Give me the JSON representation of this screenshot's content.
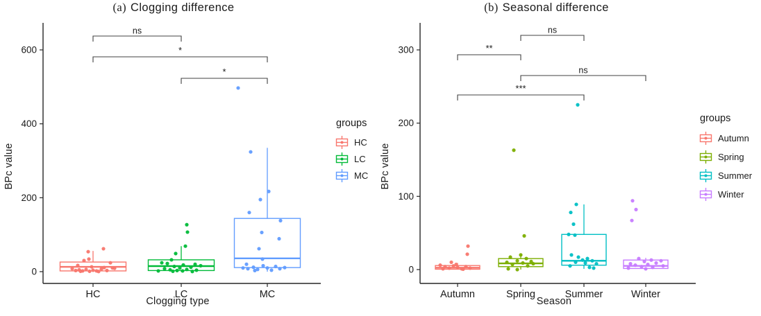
{
  "chart_data": [
    {
      "type": "boxplot",
      "title_tag": "(a)",
      "title_text": "Clogging difference",
      "xlabel": "Clogging type",
      "ylabel": "BPc value",
      "categories": [
        "HC",
        "LC",
        "MC"
      ],
      "y_ticks": [
        0,
        200,
        400,
        600
      ],
      "ylim": [
        0,
        675
      ],
      "grid": false,
      "legend": {
        "title": "groups",
        "position": "right",
        "entries": [
          {
            "label": "HC",
            "color": "#F8766D"
          },
          {
            "label": "LC",
            "color": "#00BA38"
          },
          {
            "label": "MC",
            "color": "#619CFF"
          }
        ]
      },
      "series": [
        {
          "group": "HC",
          "whisker_low": 0,
          "q1": 2,
          "median": 13,
          "q3": 26,
          "whisker_high": 56,
          "points": [
            {
              "dx": 15,
              "v": 62
            },
            {
              "dx": -7,
              "v": 54
            },
            {
              "dx": -6,
              "v": 34
            },
            {
              "dx": -13,
              "v": 30
            },
            {
              "dx": 25,
              "v": 24
            },
            {
              "dx": -22,
              "v": 17
            },
            {
              "dx": -2,
              "v": 13
            },
            {
              "dx": 16,
              "v": 11
            },
            {
              "dx": 31,
              "v": 9
            },
            {
              "dx": -30,
              "v": 8
            },
            {
              "dx": -25,
              "v": 3
            },
            {
              "dx": -20,
              "v": 5
            },
            {
              "dx": -15,
              "v": 2
            },
            {
              "dx": -10,
              "v": 6
            },
            {
              "dx": -5,
              "v": 1
            },
            {
              "dx": 0,
              "v": 4
            },
            {
              "dx": 5,
              "v": 2
            },
            {
              "dx": 12,
              "v": 7
            },
            {
              "dx": 20,
              "v": 3
            },
            {
              "dx": 28,
              "v": 10
            },
            {
              "dx": -18,
              "v": 1
            },
            {
              "dx": 8,
              "v": 0.5
            }
          ]
        },
        {
          "group": "LC",
          "whisker_low": 0,
          "q1": 3,
          "median": 15,
          "q3": 32,
          "whisker_high": 69,
          "points": [
            {
              "dx": 8,
              "v": 127
            },
            {
              "dx": 9,
              "v": 107
            },
            {
              "dx": 6,
              "v": 69
            },
            {
              "dx": -8,
              "v": 49
            },
            {
              "dx": -14,
              "v": 32
            },
            {
              "dx": -28,
              "v": 24
            },
            {
              "dx": -20,
              "v": 22
            },
            {
              "dx": 20,
              "v": 20
            },
            {
              "dx": 3,
              "v": 18
            },
            {
              "dx": 28,
              "v": 16
            },
            {
              "dx": -10,
              "v": 14
            },
            {
              "dx": 14,
              "v": 12
            },
            {
              "dx": -2,
              "v": 10
            },
            {
              "dx": -24,
              "v": 8
            },
            {
              "dx": 8,
              "v": 6
            },
            {
              "dx": -16,
              "v": 5
            },
            {
              "dx": 22,
              "v": 4
            },
            {
              "dx": -6,
              "v": 3
            },
            {
              "dx": 2,
              "v": 2
            },
            {
              "dx": -12,
              "v": 1
            },
            {
              "dx": 16,
              "v": 0.5
            },
            {
              "dx": -33,
              "v": 2
            }
          ]
        },
        {
          "group": "MC",
          "whisker_low": 0,
          "q1": 11,
          "median": 36,
          "q3": 144,
          "whisker_high": 335,
          "points": [
            {
              "dx": -42,
              "v": 497
            },
            {
              "dx": -24,
              "v": 324
            },
            {
              "dx": 2,
              "v": 217
            },
            {
              "dx": -10,
              "v": 195
            },
            {
              "dx": -26,
              "v": 160
            },
            {
              "dx": 19,
              "v": 138
            },
            {
              "dx": -8,
              "v": 106
            },
            {
              "dx": 17,
              "v": 89
            },
            {
              "dx": -12,
              "v": 62
            },
            {
              "dx": -7,
              "v": 34
            },
            {
              "dx": -30,
              "v": 20
            },
            {
              "dx": -35,
              "v": 10
            },
            {
              "dx": -28,
              "v": 8
            },
            {
              "dx": -20,
              "v": 12
            },
            {
              "dx": -14,
              "v": 6
            },
            {
              "dx": -6,
              "v": 16
            },
            {
              "dx": 0,
              "v": 10
            },
            {
              "dx": 6,
              "v": 4
            },
            {
              "dx": 12,
              "v": 14
            },
            {
              "dx": 18,
              "v": 8
            },
            {
              "dx": 25,
              "v": 11
            },
            {
              "dx": -18,
              "v": 3
            }
          ]
        }
      ],
      "brackets": [
        {
          "group1": "HC",
          "group2": "LC",
          "label": "ns"
        },
        {
          "group1": "HC",
          "group2": "MC",
          "label": "*"
        },
        {
          "group1": "LC",
          "group2": "MC",
          "label": "*"
        }
      ]
    },
    {
      "type": "boxplot",
      "title_tag": "(b)",
      "title_text": "Seasonal difference",
      "xlabel": "Season",
      "ylabel": "BPc value",
      "categories": [
        "Autumn",
        "Spring",
        "Summer",
        "Winter"
      ],
      "y_ticks": [
        0,
        100,
        200,
        300
      ],
      "ylim": [
        0,
        340
      ],
      "grid": false,
      "legend": {
        "title": "groups",
        "position": "right",
        "entries": [
          {
            "label": "Autumn",
            "color": "#F8766D"
          },
          {
            "label": "Spring",
            "color": "#7CAE00"
          },
          {
            "label": "Summer",
            "color": "#00BFC4"
          },
          {
            "label": "Winter",
            "color": "#C77CFF"
          }
        ]
      },
      "series": [
        {
          "group": "Autumn",
          "whisker_low": 0,
          "q1": 0.5,
          "median": 2.5,
          "q3": 5.5,
          "whisker_high": 9,
          "points": [
            {
              "dx": 15,
              "v": 32
            },
            {
              "dx": 14,
              "v": 21
            },
            {
              "dx": -9,
              "v": 10
            },
            {
              "dx": -25,
              "v": 6
            },
            {
              "dx": -18,
              "v": 4
            },
            {
              "dx": -12,
              "v": 2
            },
            {
              "dx": -6,
              "v": 5
            },
            {
              "dx": 0,
              "v": 3
            },
            {
              "dx": 6,
              "v": 1
            },
            {
              "dx": 12,
              "v": 4
            },
            {
              "dx": 18,
              "v": 2
            },
            {
              "dx": -2,
              "v": 7
            },
            {
              "dx": 8,
              "v": 0.5
            },
            {
              "dx": -21,
              "v": 1
            }
          ]
        },
        {
          "group": "Spring",
          "whisker_low": 0,
          "q1": 4,
          "median": 8.5,
          "q3": 15,
          "whisker_high": 20,
          "points": [
            {
              "dx": -10,
              "v": 163
            },
            {
              "dx": 5,
              "v": 46
            },
            {
              "dx": 0,
              "v": 20
            },
            {
              "dx": -15,
              "v": 17
            },
            {
              "dx": 8,
              "v": 15
            },
            {
              "dx": -5,
              "v": 12
            },
            {
              "dx": 15,
              "v": 11
            },
            {
              "dx": -20,
              "v": 10
            },
            {
              "dx": 3,
              "v": 9
            },
            {
              "dx": 18,
              "v": 8
            },
            {
              "dx": -12,
              "v": 7
            },
            {
              "dx": 10,
              "v": 5
            },
            {
              "dx": -18,
              "v": 1
            },
            {
              "dx": -5,
              "v": 0
            }
          ]
        },
        {
          "group": "Summer",
          "whisker_low": 1,
          "q1": 6,
          "median": 12,
          "q3": 48,
          "whisker_high": 89,
          "points": [
            {
              "dx": -9,
              "v": 225
            },
            {
              "dx": -11,
              "v": 89
            },
            {
              "dx": -19,
              "v": 78
            },
            {
              "dx": -15,
              "v": 62
            },
            {
              "dx": -22,
              "v": 48
            },
            {
              "dx": -13,
              "v": 47
            },
            {
              "dx": -18,
              "v": 20
            },
            {
              "dx": -8,
              "v": 17
            },
            {
              "dx": 5,
              "v": 15
            },
            {
              "dx": -2,
              "v": 13
            },
            {
              "dx": 12,
              "v": 12
            },
            {
              "dx": -12,
              "v": 10
            },
            {
              "dx": 2,
              "v": 9
            },
            {
              "dx": 18,
              "v": 8
            },
            {
              "dx": -20,
              "v": 5
            },
            {
              "dx": 8,
              "v": 3
            },
            {
              "dx": 14,
              "v": 2
            }
          ]
        },
        {
          "group": "Winter",
          "whisker_low": 0,
          "q1": 1.5,
          "median": 5,
          "q3": 13,
          "whisker_high": 16,
          "points": [
            {
              "dx": -19,
              "v": 94
            },
            {
              "dx": -14,
              "v": 82
            },
            {
              "dx": -20,
              "v": 67
            },
            {
              "dx": -10,
              "v": 15
            },
            {
              "dx": 8,
              "v": 13
            },
            {
              "dx": 22,
              "v": 12
            },
            {
              "dx": -2,
              "v": 11
            },
            {
              "dx": 15,
              "v": 9
            },
            {
              "dx": -22,
              "v": 8
            },
            {
              "dx": 3,
              "v": 7
            },
            {
              "dx": -15,
              "v": 6
            },
            {
              "dx": 25,
              "v": 5
            },
            {
              "dx": -6,
              "v": 4
            },
            {
              "dx": 10,
              "v": 3
            },
            {
              "dx": -25,
              "v": 2
            },
            {
              "dx": 0,
              "v": 1
            }
          ]
        }
      ],
      "brackets": [
        {
          "group1": "Spring",
          "group2": "Summer",
          "label": "ns"
        },
        {
          "group1": "Autumn",
          "group2": "Spring",
          "label": "**"
        },
        {
          "group1": "Spring",
          "group2": "Winter",
          "label": "ns"
        },
        {
          "group1": "Autumn",
          "group2": "Summer",
          "label": "***"
        }
      ]
    }
  ]
}
